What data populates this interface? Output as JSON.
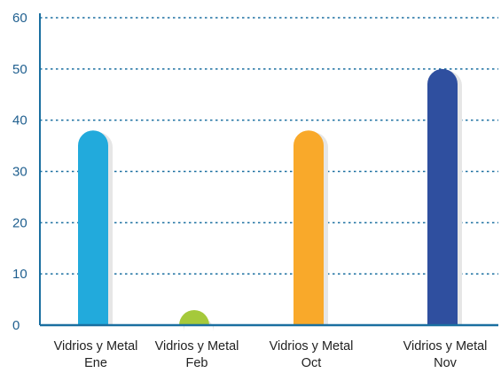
{
  "chart_data": {
    "type": "bar",
    "categories": [
      [
        "Vidrios y Metal",
        "Ene"
      ],
      [
        "Vidrios y Metal",
        "Feb"
      ],
      [
        "Vidrios y Metal",
        "Oct"
      ],
      [
        "Vidrios y Metal",
        "Nov"
      ]
    ],
    "values": [
      38,
      2,
      38,
      50
    ],
    "colors": [
      "#22aadc",
      "#a5c93b",
      "#f9a92a",
      "#2f4f9f"
    ],
    "ylim": [
      0,
      60
    ],
    "yticks": [
      0,
      10,
      20,
      30,
      40,
      50,
      60
    ],
    "grid": true,
    "title": "",
    "xlabel": "",
    "ylabel": "",
    "axis_color": "#1a6fa0"
  }
}
